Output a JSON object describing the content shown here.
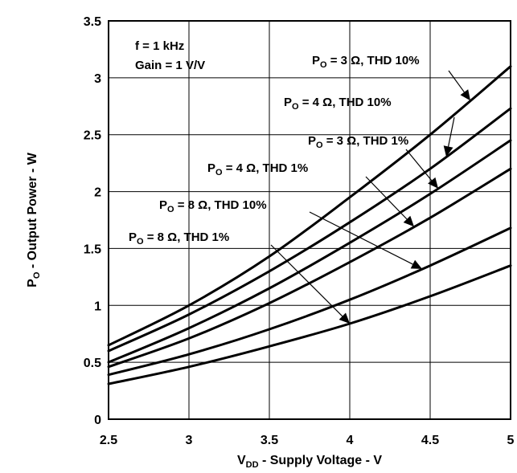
{
  "chart_data": {
    "type": "line",
    "title": "",
    "xlabel": {
      "prefix": "V",
      "sub": "DD",
      "rest": " - Supply Voltage - V"
    },
    "ylabel": {
      "prefix": "P",
      "sub": "O",
      "rest": " - Output Power - W"
    },
    "xlim": [
      2.5,
      5
    ],
    "ylim": [
      0,
      3.5
    ],
    "grid": true,
    "x_ticks": [
      "2.5",
      "3",
      "3.5",
      "4",
      "4.5",
      "5"
    ],
    "y_ticks": [
      "0",
      "0.5",
      "1",
      "1.5",
      "2",
      "2.5",
      "3",
      "3.5"
    ],
    "conditions": [
      "f = 1 kHz",
      "Gain = 1 V/V"
    ],
    "series": [
      {
        "name": "PO = 3 Ω, THD 10%",
        "label": {
          "p": "P",
          "sub": "O",
          "rest": " = 3 Ω, THD 10%"
        },
        "x": [
          2.5,
          3,
          3.5,
          4,
          4.5,
          5
        ],
        "y": [
          0.65,
          1.0,
          1.43,
          1.95,
          2.5,
          3.1
        ]
      },
      {
        "name": "PO = 4 Ω, THD 10%",
        "label": {
          "p": "P",
          "sub": "O",
          "rest": " = 4 Ω, THD 10%"
        },
        "x": [
          2.5,
          3,
          3.5,
          4,
          4.5,
          5
        ],
        "y": [
          0.6,
          0.92,
          1.3,
          1.73,
          2.2,
          2.73
        ]
      },
      {
        "name": "PO = 3 Ω, THD 1%",
        "label": {
          "p": "P",
          "sub": "O",
          "rest": " = 3 Ω, THD 1%"
        },
        "x": [
          2.5,
          3,
          3.5,
          4,
          4.5,
          5
        ],
        "y": [
          0.5,
          0.8,
          1.15,
          1.55,
          1.98,
          2.45
        ]
      },
      {
        "name": "PO = 4 Ω, THD 1%",
        "label": {
          "p": "P",
          "sub": "O",
          "rest": " = 4 Ω, THD 1%"
        },
        "x": [
          2.5,
          3,
          3.5,
          4,
          4.5,
          5
        ],
        "y": [
          0.46,
          0.71,
          1.02,
          1.38,
          1.77,
          2.2
        ]
      },
      {
        "name": "PO = 8 Ω, THD 10%",
        "label": {
          "p": "P",
          "sub": "O",
          "rest": " = 8 Ω, THD 10%"
        },
        "x": [
          2.5,
          3,
          3.5,
          4,
          4.5,
          5
        ],
        "y": [
          0.39,
          0.57,
          0.79,
          1.05,
          1.35,
          1.68
        ]
      },
      {
        "name": "PO = 8 Ω, THD 1%",
        "label": {
          "p": "P",
          "sub": "O",
          "rest": " = 8 Ω, THD 1%"
        },
        "x": [
          2.5,
          3,
          3.5,
          4,
          4.5,
          5
        ],
        "y": [
          0.31,
          0.46,
          0.64,
          0.84,
          1.08,
          1.35
        ]
      }
    ]
  }
}
